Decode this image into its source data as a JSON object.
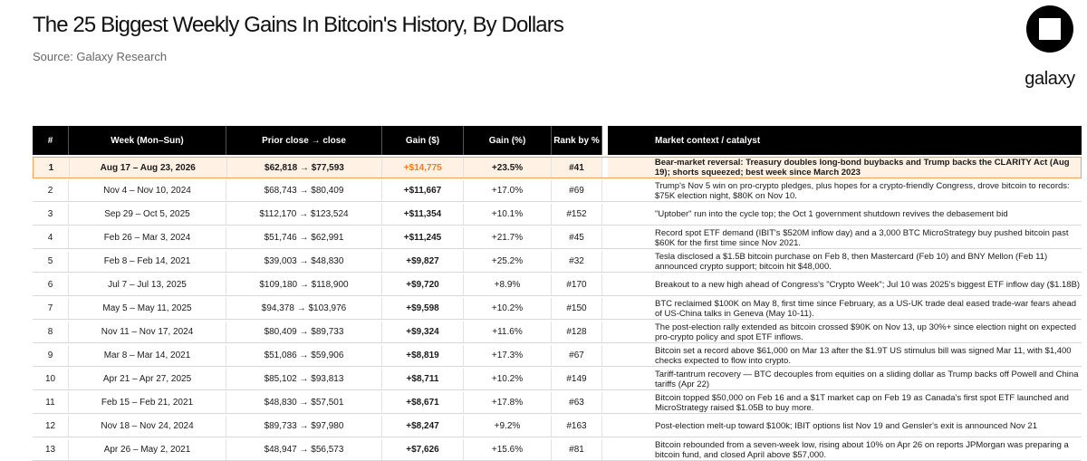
{
  "header": {
    "title": "The 25 Biggest Weekly Gains In Bitcoin's History, By Dollars",
    "source": "Source: Galaxy Research",
    "logo_text": "galaxy"
  },
  "table": {
    "columns": [
      "#",
      "Week (Mon–Sun)",
      "Prior close → close",
      "Gain ($)",
      "Gain (%)",
      "Rank by %",
      "Market context / catalyst"
    ],
    "rows": [
      {
        "rank": "1",
        "week": "Aug 17 – Aug 23, 2026",
        "close": "$62,818 → $77,593",
        "gain": "+$14,775",
        "pct": "+23.5%",
        "rank_pct": "#41",
        "context": "Bear-market reversal: Treasury doubles long-bond buybacks and Trump backs the CLARITY Act (Aug 19); shorts squeezed; best week since March 2023"
      },
      {
        "rank": "2",
        "week": "Nov 4 – Nov 10, 2024",
        "close": "$68,743 → $80,409",
        "gain": "+$11,667",
        "pct": "+17.0%",
        "rank_pct": "#69",
        "context": "Trump's Nov 5 win on pro-crypto pledges, plus hopes for a crypto-friendly Congress, drove bitcoin to records: $75K election night, $80K on Nov 10."
      },
      {
        "rank": "3",
        "week": "Sep 29 – Oct 5, 2025",
        "close": "$112,170 → $123,524",
        "gain": "+$11,354",
        "pct": "+10.1%",
        "rank_pct": "#152",
        "context": "\"Uptober\" run into the cycle top; the Oct 1 government shutdown revives the debasement bid"
      },
      {
        "rank": "4",
        "week": "Feb 26 – Mar 3, 2024",
        "close": "$51,746 → $62,991",
        "gain": "+$11,245",
        "pct": "+21.7%",
        "rank_pct": "#45",
        "context": "Record spot ETF demand (IBIT's $520M inflow day) and a 3,000 BTC MicroStrategy buy pushed bitcoin past $60K for the first time since Nov 2021."
      },
      {
        "rank": "5",
        "week": "Feb 8 – Feb 14, 2021",
        "close": "$39,003 → $48,830",
        "gain": "+$9,827",
        "pct": "+25.2%",
        "rank_pct": "#32",
        "context": "Tesla disclosed a $1.5B bitcoin purchase on Feb 8, then Mastercard (Feb 10) and BNY Mellon (Feb 11) announced crypto support; bitcoin hit $48,000."
      },
      {
        "rank": "6",
        "week": "Jul 7 – Jul 13, 2025",
        "close": "$109,180 → $118,900",
        "gain": "+$9,720",
        "pct": "+8.9%",
        "rank_pct": "#170",
        "context": "Breakout to a new high ahead of Congress's \"Crypto Week\"; Jul 10 was 2025's biggest ETF inflow day ($1.18B)"
      },
      {
        "rank": "7",
        "week": "May 5 – May 11, 2025",
        "close": "$94,378 → $103,976",
        "gain": "+$9,598",
        "pct": "+10.2%",
        "rank_pct": "#150",
        "context": "BTC reclaimed $100K on May 8, first time since February, as a US-UK trade deal eased trade-war fears ahead of US-China talks in Geneva (May 10-11)."
      },
      {
        "rank": "8",
        "week": "Nov 11 – Nov 17, 2024",
        "close": "$80,409 → $89,733",
        "gain": "+$9,324",
        "pct": "+11.6%",
        "rank_pct": "#128",
        "context": "The post-election rally extended as bitcoin crossed $90K on Nov 13, up 30%+ since election night on expected pro-crypto policy and spot ETF inflows."
      },
      {
        "rank": "9",
        "week": "Mar 8 – Mar 14, 2021",
        "close": "$51,086 → $59,906",
        "gain": "+$8,819",
        "pct": "+17.3%",
        "rank_pct": "#67",
        "context": "Bitcoin set a record above $61,000 on Mar 13 after the $1.9T US stimulus bill was signed Mar 11, with $1,400 checks expected to flow into crypto."
      },
      {
        "rank": "10",
        "week": "Apr 21 – Apr 27, 2025",
        "close": "$85,102 → $93,813",
        "gain": "+$8,711",
        "pct": "+10.2%",
        "rank_pct": "#149",
        "context": "Tariff-tantrum recovery — BTC decouples from equities on a sliding dollar as Trump backs off Powell and China tariffs (Apr 22)"
      },
      {
        "rank": "11",
        "week": "Feb 15 – Feb 21, 2021",
        "close": "$48,830 → $57,501",
        "gain": "+$8,671",
        "pct": "+17.8%",
        "rank_pct": "#63",
        "context": "Bitcoin topped $50,000 on Feb 16 and a $1T market cap on Feb 19 as Canada's first spot ETF launched and MicroStrategy raised $1.05B to buy more."
      },
      {
        "rank": "12",
        "week": "Nov 18 – Nov 24, 2024",
        "close": "$89,733 → $97,980",
        "gain": "+$8,247",
        "pct": "+9.2%",
        "rank_pct": "#163",
        "context": "Post-election melt-up toward $100k; IBIT options list Nov 19 and Gensler's exit is announced Nov 21"
      },
      {
        "rank": "13",
        "week": "Apr 26 – May 2, 2021",
        "close": "$48,947 → $56,573",
        "gain": "+$7,626",
        "pct": "+15.6%",
        "rank_pct": "#81",
        "context": "Bitcoin rebounded from a seven-week low, rising about 10% on Apr 26 on reports JPMorgan was preparing a bitcoin fund, and closed April above $57,000."
      }
    ]
  }
}
